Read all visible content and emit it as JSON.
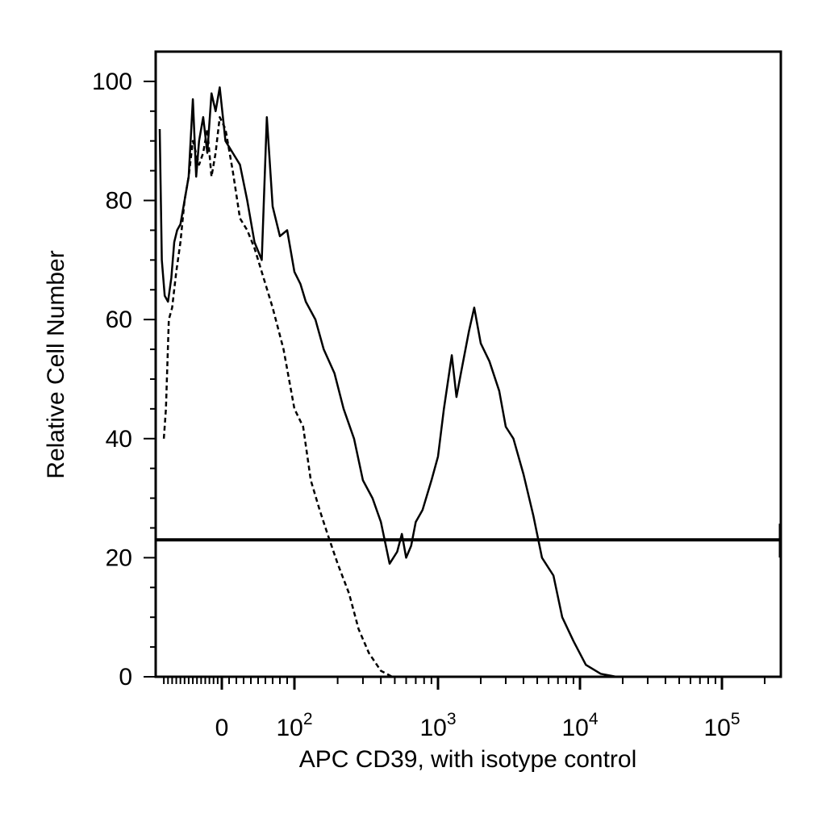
{
  "chart_data": {
    "type": "line",
    "title": "",
    "xlabel": "APC CD39, with isotype control",
    "ylabel": "Relative Cell Number",
    "x_scale": "biexponential",
    "xlim": [
      -150,
      250000
    ],
    "ylim": [
      0,
      105
    ],
    "x_ticks": [
      {
        "value": 0,
        "label": "0"
      },
      {
        "value": 100,
        "label": "10",
        "sup": "2"
      },
      {
        "value": 1000,
        "label": "10",
        "sup": "3"
      },
      {
        "value": 10000,
        "label": "10",
        "sup": "4"
      },
      {
        "value": 100000,
        "label": "10",
        "sup": "5"
      }
    ],
    "y_ticks": [
      0,
      20,
      40,
      60,
      80,
      100
    ],
    "grid": false,
    "legend": "none",
    "gate_line": {
      "y": 23
    },
    "series": [
      {
        "style": "solid",
        "points": [
          [
            -150,
            92
          ],
          [
            -145,
            70
          ],
          [
            -138,
            64
          ],
          [
            -130,
            63
          ],
          [
            -122,
            67
          ],
          [
            -115,
            73
          ],
          [
            -108,
            75
          ],
          [
            -100,
            76
          ],
          [
            -90,
            80
          ],
          [
            -80,
            84
          ],
          [
            -70,
            97
          ],
          [
            -62,
            84
          ],
          [
            -55,
            90
          ],
          [
            -45,
            94
          ],
          [
            -35,
            88
          ],
          [
            -25,
            98
          ],
          [
            -15,
            95
          ],
          [
            -5,
            99
          ],
          [
            5,
            90
          ],
          [
            15,
            88
          ],
          [
            25,
            86
          ],
          [
            35,
            80
          ],
          [
            45,
            73
          ],
          [
            55,
            70
          ],
          [
            62,
            94
          ],
          [
            70,
            79
          ],
          [
            80,
            74
          ],
          [
            90,
            75
          ],
          [
            100,
            68
          ],
          [
            110,
            66
          ],
          [
            120,
            63
          ],
          [
            140,
            60
          ],
          [
            160,
            55
          ],
          [
            190,
            51
          ],
          [
            220,
            45
          ],
          [
            260,
            40
          ],
          [
            300,
            33
          ],
          [
            350,
            30
          ],
          [
            400,
            26
          ],
          [
            460,
            19
          ],
          [
            520,
            21
          ],
          [
            560,
            24
          ],
          [
            600,
            20
          ],
          [
            650,
            22
          ],
          [
            700,
            26
          ],
          [
            780,
            28
          ],
          [
            900,
            33
          ],
          [
            1000,
            37
          ],
          [
            1100,
            45
          ],
          [
            1250,
            54
          ],
          [
            1350,
            47
          ],
          [
            1450,
            51
          ],
          [
            1650,
            58
          ],
          [
            1800,
            62
          ],
          [
            2000,
            56
          ],
          [
            2300,
            53
          ],
          [
            2700,
            48
          ],
          [
            3000,
            42
          ],
          [
            3400,
            40
          ],
          [
            4000,
            34
          ],
          [
            4700,
            27
          ],
          [
            5400,
            20
          ],
          [
            6500,
            17
          ],
          [
            7500,
            10
          ],
          [
            9000,
            6
          ],
          [
            11000,
            2
          ],
          [
            14000,
            0.5
          ],
          [
            18000,
            0
          ],
          [
            250000,
            0
          ]
        ]
      },
      {
        "style": "dashed",
        "points": [
          [
            -140,
            40
          ],
          [
            -135,
            45
          ],
          [
            -128,
            60
          ],
          [
            -120,
            62
          ],
          [
            -110,
            68
          ],
          [
            -100,
            73
          ],
          [
            -90,
            80
          ],
          [
            -80,
            84
          ],
          [
            -70,
            90
          ],
          [
            -55,
            86
          ],
          [
            -45,
            88
          ],
          [
            -35,
            92
          ],
          [
            -25,
            84
          ],
          [
            -15,
            88
          ],
          [
            -5,
            94
          ],
          [
            5,
            92
          ],
          [
            15,
            85
          ],
          [
            25,
            77
          ],
          [
            35,
            75
          ],
          [
            45,
            72
          ],
          [
            55,
            68
          ],
          [
            70,
            62
          ],
          [
            85,
            55
          ],
          [
            100,
            45
          ],
          [
            115,
            42
          ],
          [
            130,
            33
          ],
          [
            150,
            28
          ],
          [
            170,
            24
          ],
          [
            200,
            19
          ],
          [
            240,
            14
          ],
          [
            280,
            8
          ],
          [
            330,
            4
          ],
          [
            400,
            1
          ],
          [
            480,
            0
          ],
          [
            250000,
            0
          ]
        ]
      }
    ]
  }
}
